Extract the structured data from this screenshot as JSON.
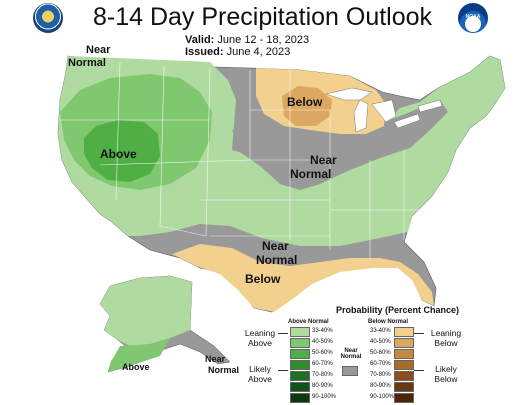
{
  "header": {
    "title": "8-14 Day Precipitation Outlook",
    "valid_label": "Valid:",
    "valid_value": "June 12 - 18, 2023",
    "issued_label": "Issued:",
    "issued_value": "June 4, 2023"
  },
  "logos": {
    "left": "doc-seal-icon",
    "right_text": "NOAA"
  },
  "map": {
    "regions": {
      "near_normal_nw": [
        "Near",
        "Normal"
      ],
      "above_west": "Above",
      "below_north": "Below",
      "near_normal_central": [
        "Near",
        "Normal"
      ],
      "near_normal_south": [
        "Near",
        "Normal"
      ],
      "below_south": "Below",
      "above_alaska": "Above",
      "near_normal_alaska": [
        "Near",
        "Normal"
      ]
    },
    "colors": {
      "above_33_40": "#b0dba0",
      "above_40_50": "#80c870",
      "above_50_60": "#4fae44",
      "near_normal": "#999999",
      "below_33_40": "#f2d08e",
      "below_40_50": "#dca760"
    }
  },
  "legend": {
    "title": "Probability (Percent Chance)",
    "above_header": "Above Normal",
    "below_header": "Below Normal",
    "near_normal_label": [
      "Near",
      "Normal"
    ],
    "above_bins": [
      {
        "label": "33-40%",
        "color": "#b0dba0"
      },
      {
        "label": "40-50%",
        "color": "#80c870"
      },
      {
        "label": "50-60%",
        "color": "#4fae44"
      },
      {
        "label": "60-70%",
        "color": "#2e8c2e"
      },
      {
        "label": "70-80%",
        "color": "#1f6d26"
      },
      {
        "label": "80-90%",
        "color": "#14521b"
      },
      {
        "label": "90-100%",
        "color": "#0b3a10"
      }
    ],
    "below_bins": [
      {
        "label": "33-40%",
        "color": "#f2d08e"
      },
      {
        "label": "40-50%",
        "color": "#dca760"
      },
      {
        "label": "50-60%",
        "color": "#c58840"
      },
      {
        "label": "60-70%",
        "color": "#a96a2c"
      },
      {
        "label": "70-80%",
        "color": "#8a4e1e"
      },
      {
        "label": "80-90%",
        "color": "#6b3814"
      },
      {
        "label": "90-100%",
        "color": "#4e2409"
      }
    ],
    "near_color": "#999999",
    "leaning_above": [
      "Leaning",
      "Above"
    ],
    "likely_above": [
      "Likely",
      "Above"
    ],
    "leaning_below": [
      "Leaning",
      "Below"
    ],
    "likely_below": [
      "Likely",
      "Below"
    ]
  }
}
